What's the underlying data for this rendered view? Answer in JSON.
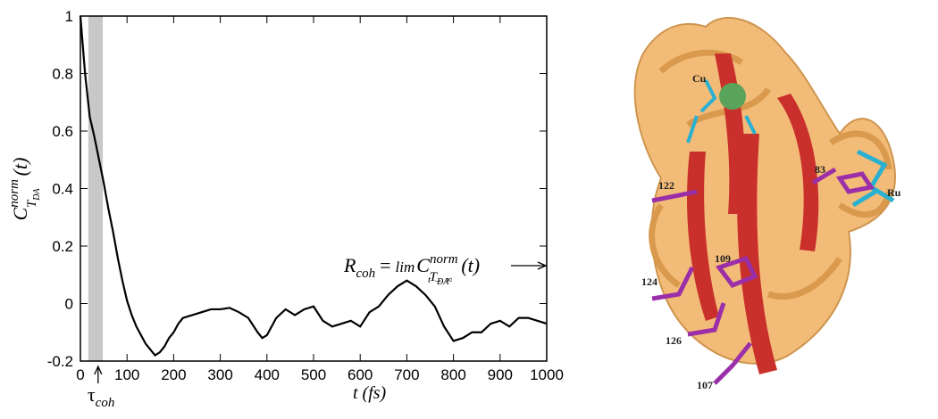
{
  "chart_data": {
    "type": "line",
    "x": [
      0,
      10,
      20,
      30,
      40,
      50,
      60,
      70,
      80,
      90,
      100,
      110,
      120,
      130,
      140,
      150,
      160,
      170,
      180,
      190,
      200,
      210,
      220,
      240,
      260,
      280,
      300,
      320,
      340,
      360,
      380,
      390,
      400,
      420,
      440,
      460,
      480,
      500,
      520,
      540,
      560,
      580,
      600,
      620,
      640,
      660,
      680,
      700,
      720,
      740,
      760,
      780,
      800,
      820,
      840,
      860,
      880,
      900,
      920,
      940,
      960,
      980,
      1000
    ],
    "series": [
      {
        "color": "#000000",
        "values": [
          1.0,
          0.8,
          0.65,
          0.58,
          0.5,
          0.42,
          0.33,
          0.25,
          0.16,
          0.08,
          0.01,
          -0.04,
          -0.08,
          -0.11,
          -0.14,
          -0.16,
          -0.18,
          -0.17,
          -0.15,
          -0.12,
          -0.1,
          -0.07,
          -0.05,
          -0.04,
          -0.03,
          -0.02,
          -0.02,
          -0.015,
          -0.03,
          -0.05,
          -0.1,
          -0.12,
          -0.11,
          -0.05,
          -0.02,
          -0.04,
          -0.02,
          -0.01,
          -0.06,
          -0.08,
          -0.07,
          -0.06,
          -0.08,
          -0.03,
          -0.01,
          0.03,
          0.06,
          0.08,
          0.06,
          0.03,
          -0.01,
          -0.08,
          -0.13,
          -0.12,
          -0.1,
          -0.1,
          -0.07,
          -0.06,
          -0.08,
          -0.05,
          -0.05,
          -0.06,
          -0.07
        ]
      }
    ],
    "xlim": [
      0,
      1000
    ],
    "xticks": [
      0,
      100,
      200,
      300,
      400,
      500,
      600,
      700,
      800,
      900,
      1000
    ],
    "ylim": [
      -0.2,
      1
    ],
    "yticks": [
      -0.2,
      0,
      0.2,
      0.4,
      0.6,
      0.8,
      1
    ],
    "shaded_region": {
      "x": [
        17,
        48
      ],
      "color": "#c8c8c8"
    },
    "x_label": "t (fs)",
    "y_label": {
      "base": "C",
      "superscript": "norm",
      "subscript": "T",
      "sub_subscript": "DA",
      "argument": "(t)"
    },
    "tau_marker": {
      "x": 38,
      "symbol": "τ",
      "subscript": "coh"
    },
    "annotation": {
      "lhs": "R",
      "lhs_subscript": "coh",
      "equals": "=",
      "operator": "lim",
      "operator_subscript": "t → ∞",
      "base": "C",
      "superscript": "norm",
      "subscript": "T",
      "sub_subscript": "DA",
      "argument": "(t)"
    }
  },
  "image_labels": {
    "cu": "Cu",
    "ru": "Ru",
    "r122": "122",
    "r83": "83",
    "r109": "109",
    "r124": "124",
    "r126": "126",
    "r107": "107"
  }
}
